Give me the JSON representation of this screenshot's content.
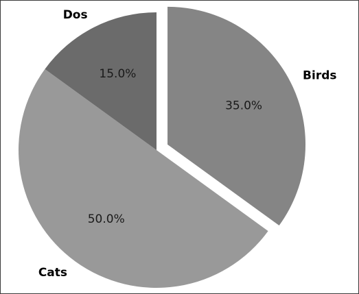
{
  "chart_data": {
    "type": "pie",
    "title": "",
    "categories": [
      "Birds",
      "Cats",
      "Dos"
    ],
    "values": [
      35.0,
      50.0,
      15.0
    ],
    "value_labels": [
      "35.0%",
      "50.0%",
      "15.0%"
    ],
    "exploded": [
      "Birds"
    ],
    "start_angle_deg": 0,
    "direction": "clockwise",
    "colors": [
      "#858585",
      "#999999",
      "#6b6b6b"
    ],
    "legend": "none"
  }
}
